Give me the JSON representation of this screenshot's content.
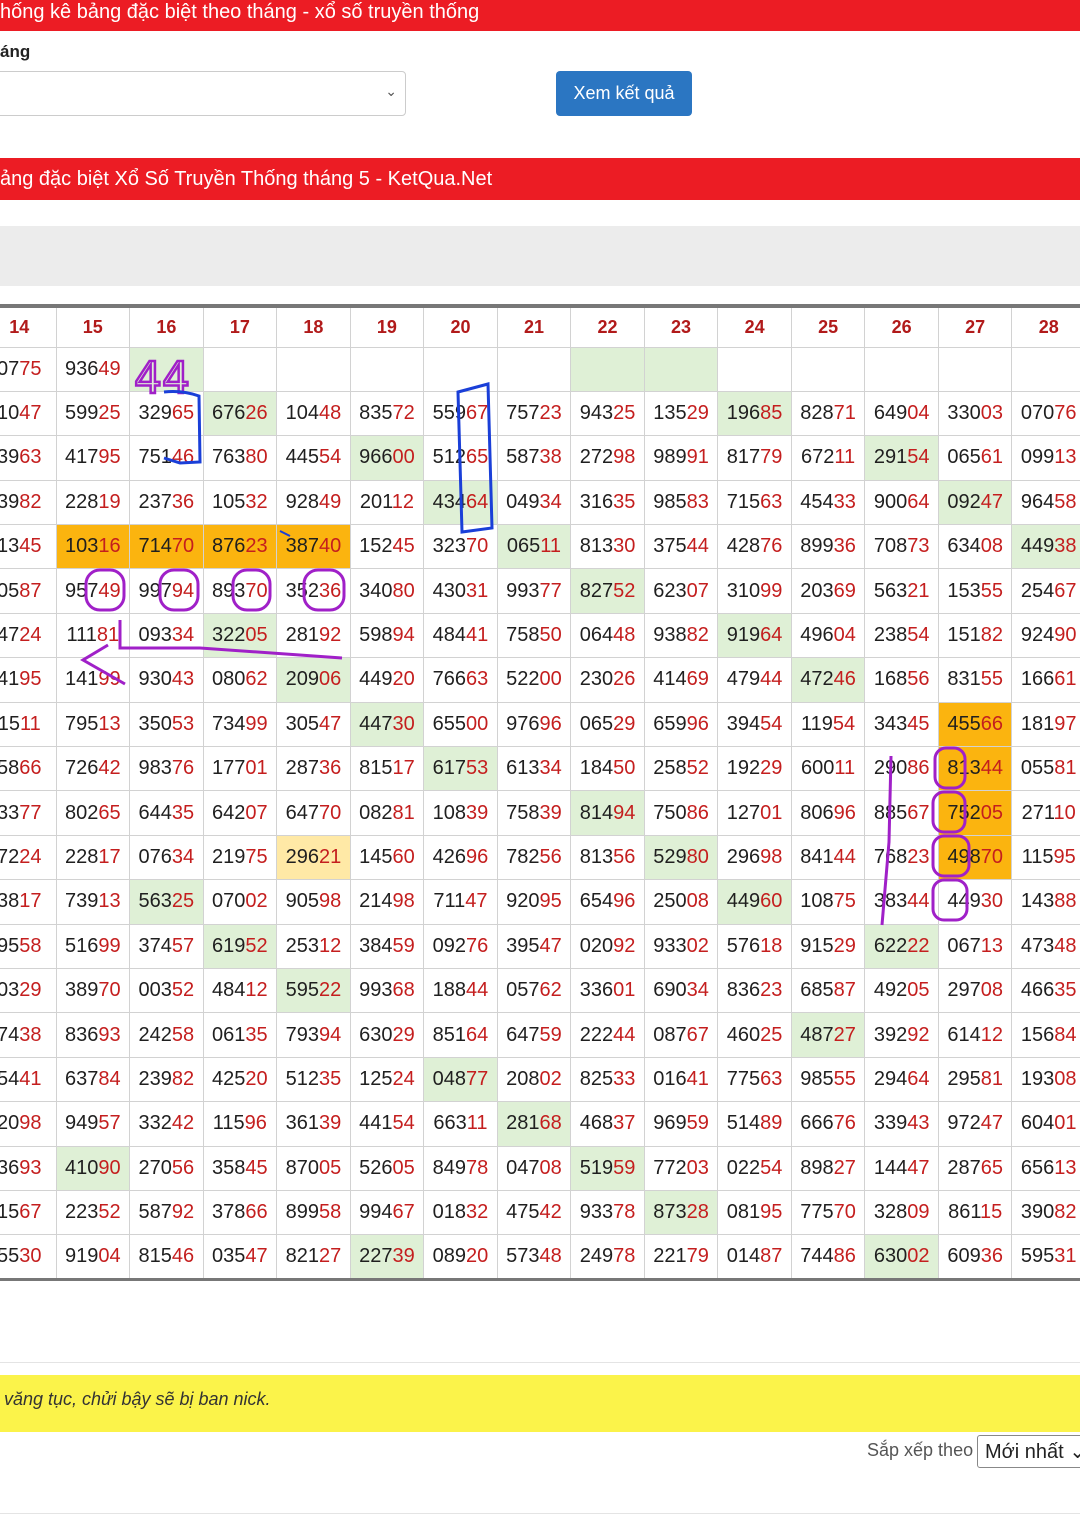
{
  "header": {
    "title": "hống kê bảng đặc biệt theo tháng - xổ số truyền thống"
  },
  "filter": {
    "label": "áng",
    "select_value": "",
    "button_label": "Xem kết quả"
  },
  "section": {
    "title": "ảng đặc biệt Xổ Số Truyền Thống tháng 5 - KetQua.Net"
  },
  "table": {
    "columns": [
      "14",
      "15",
      "16",
      "17",
      "18",
      "19",
      "20",
      "21",
      "22",
      "23",
      "24",
      "25",
      "26",
      "27",
      "28"
    ],
    "rows": [
      [
        "0775",
        "93649",
        "",
        "",
        "",
        "",
        "",
        "",
        "",
        "",
        "",
        "",
        "",
        "",
        ""
      ],
      [
        "1047",
        "59925",
        "32965",
        "67626",
        "10448",
        "83572",
        "55967",
        "75723",
        "94325",
        "13529",
        "19685",
        "82871",
        "64904",
        "33003",
        "07076"
      ],
      [
        "3963",
        "41795",
        "75146",
        "76380",
        "44554",
        "96600",
        "51265",
        "58738",
        "27298",
        "98991",
        "81779",
        "67211",
        "29154",
        "06561",
        "09913"
      ],
      [
        "3982",
        "22819",
        "23736",
        "10532",
        "92849",
        "20112",
        "43464",
        "04934",
        "31635",
        "98583",
        "71563",
        "45433",
        "90064",
        "09247",
        "96458"
      ],
      [
        "1345",
        "10316",
        "71470",
        "87623",
        "38740",
        "15245",
        "32370",
        "06511",
        "81330",
        "37544",
        "42876",
        "89936",
        "70873",
        "63408",
        "44938"
      ],
      [
        "0587",
        "95749",
        "99794",
        "89370",
        "35236",
        "34080",
        "43031",
        "99377",
        "82752",
        "62307",
        "31099",
        "20369",
        "56321",
        "15355",
        "25467"
      ],
      [
        "4724",
        "11181",
        "09334",
        "32205",
        "28192",
        "59894",
        "48441",
        "75850",
        "06448",
        "93882",
        "91964",
        "49604",
        "23854",
        "15182",
        "92490"
      ],
      [
        "4195",
        "14199",
        "93043",
        "08062",
        "20906",
        "44920",
        "76663",
        "52200",
        "23026",
        "41469",
        "47944",
        "47246",
        "16856",
        "83155",
        "16661"
      ],
      [
        "1511",
        "79513",
        "35053",
        "73499",
        "30547",
        "44730",
        "65500",
        "97696",
        "06529",
        "65996",
        "39454",
        "11954",
        "34345",
        "45566",
        "18197"
      ],
      [
        "5866",
        "72642",
        "98376",
        "17701",
        "28736",
        "81517",
        "61753",
        "61334",
        "18450",
        "25852",
        "19229",
        "60011",
        "29086",
        "81344",
        "05581"
      ],
      [
        "3377",
        "80265",
        "64435",
        "64207",
        "64770",
        "08281",
        "10839",
        "75839",
        "81494",
        "75086",
        "12701",
        "80696",
        "88567",
        "75205",
        "27110"
      ],
      [
        "7224",
        "22817",
        "07634",
        "21975",
        "29621",
        "14560",
        "42696",
        "78256",
        "81356",
        "52980",
        "29698",
        "84144",
        "76823",
        "49870",
        "11595"
      ],
      [
        "3817",
        "73913",
        "56325",
        "07002",
        "90598",
        "21498",
        "71147",
        "92095",
        "65496",
        "25008",
        "44960",
        "10875",
        "38344",
        "44930",
        "14388"
      ],
      [
        "9558",
        "51699",
        "37457",
        "61952",
        "25312",
        "38459",
        "09276",
        "39547",
        "02092",
        "93302",
        "57618",
        "91529",
        "62222",
        "06713",
        "47348"
      ],
      [
        "0329",
        "38970",
        "00352",
        "48412",
        "59522",
        "99368",
        "18844",
        "05762",
        "33601",
        "69034",
        "83623",
        "68587",
        "49205",
        "29708",
        "46635"
      ],
      [
        "7438",
        "83693",
        "24258",
        "06135",
        "79394",
        "63029",
        "85164",
        "64759",
        "22244",
        "08767",
        "46025",
        "48727",
        "39292",
        "61412",
        "15684"
      ],
      [
        "5441",
        "63784",
        "23982",
        "42520",
        "51235",
        "12524",
        "04877",
        "20802",
        "82533",
        "01641",
        "77563",
        "98555",
        "29464",
        "29581",
        "19308"
      ],
      [
        "2098",
        "94957",
        "33242",
        "11596",
        "36139",
        "44154",
        "66311",
        "28168",
        "46837",
        "96959",
        "51489",
        "66676",
        "33943",
        "97247",
        "60401"
      ],
      [
        "3693",
        "41090",
        "27056",
        "35845",
        "87005",
        "52605",
        "84978",
        "04708",
        "51959",
        "77203",
        "02254",
        "89827",
        "14447",
        "28765",
        "65613"
      ],
      [
        "1567",
        "22352",
        "58792",
        "37866",
        "89958",
        "99467",
        "01832",
        "47542",
        "93378",
        "87328",
        "08195",
        "77570",
        "32809",
        "86115",
        "39082"
      ],
      [
        "5530",
        "91904",
        "81546",
        "03547",
        "82127",
        "22739",
        "08920",
        "57348",
        "24978",
        "22179",
        "01487",
        "74486",
        "63002",
        "60936",
        "59531"
      ]
    ],
    "green_cells": [
      "1-2",
      "1-9",
      "2-3",
      "2-10",
      "3-5",
      "3-12",
      "4-6",
      "4-13",
      "5-7",
      "5-14",
      "6-8",
      "7-3",
      "7-10",
      "8-4",
      "8-11",
      "9-5",
      "10-6",
      "11-8",
      "12-9",
      "13-2",
      "13-10",
      "14-3",
      "14-12",
      "15-4",
      "16-11",
      "17-6",
      "18-7",
      "19-1",
      "19-8",
      "20-9",
      "21-5",
      "21-12"
    ],
    "orange_cells": [
      "5-1",
      "5-2",
      "5-3",
      "5-4",
      "9-13",
      "10-13",
      "11-13",
      "12-13"
    ],
    "yellow_cells": [
      "12-4"
    ]
  },
  "annotation": {
    "handwritten": "44"
  },
  "notice": {
    "text": "văng tục, chửi bậy sẽ bị ban nick."
  },
  "sort": {
    "label": "Sắp xếp theo",
    "value": "Mới nhất"
  }
}
